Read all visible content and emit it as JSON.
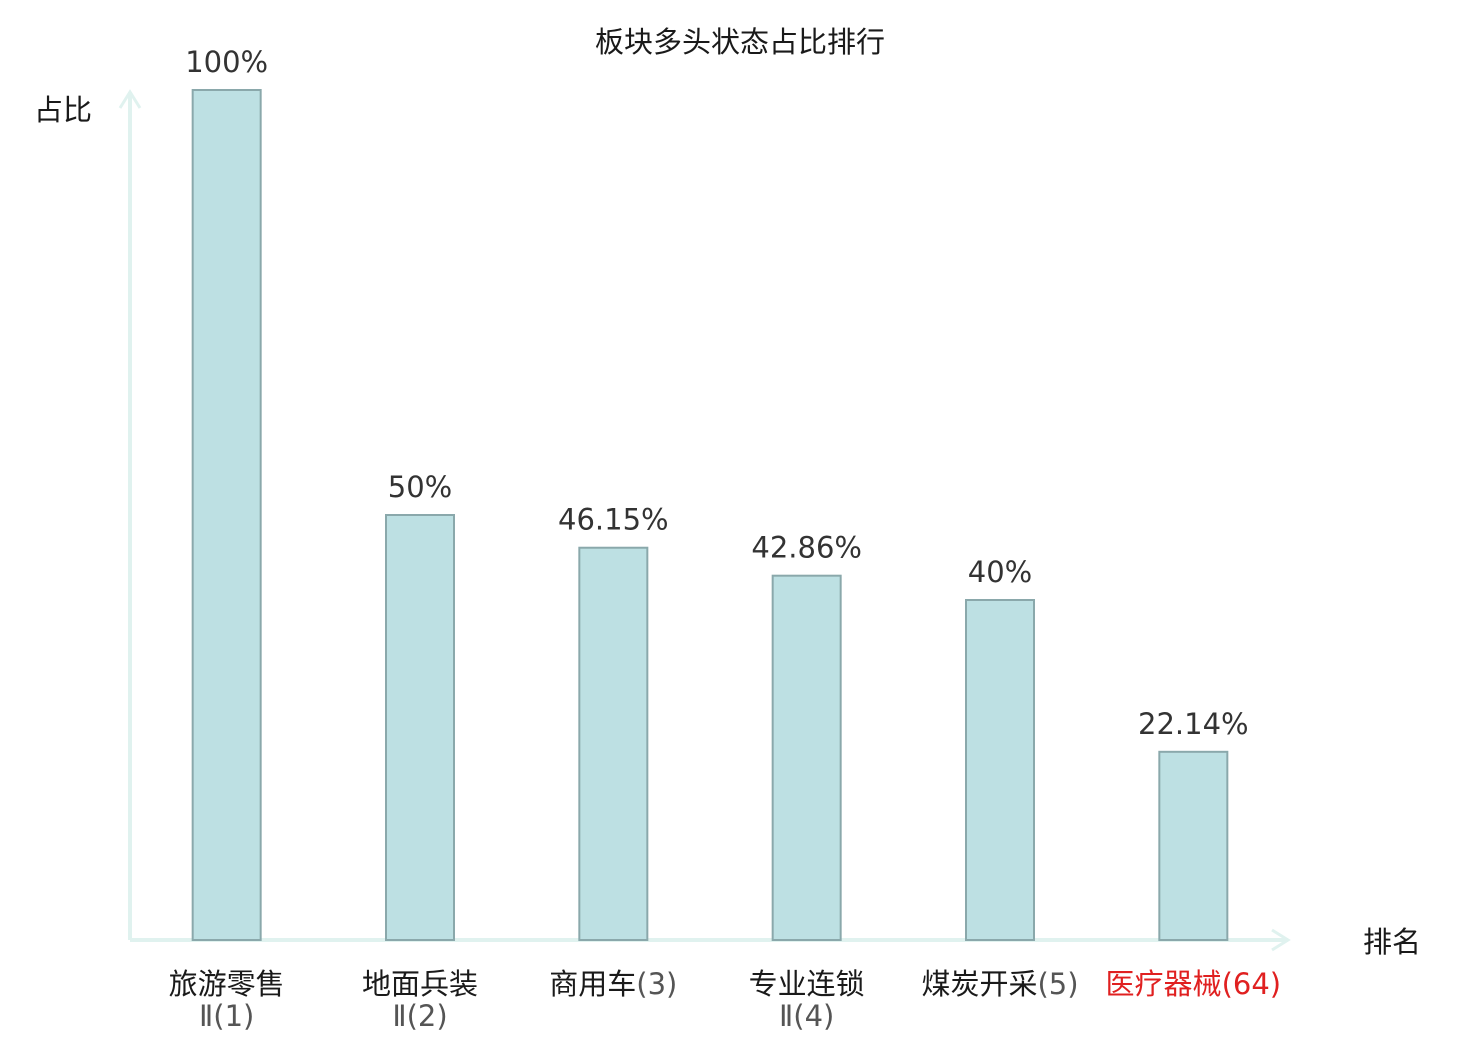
{
  "chart_data": {
    "type": "bar",
    "title": "板块多头状态占比排行",
    "xlabel": "排名",
    "ylabel": "占比",
    "ylim": [
      0,
      100
    ],
    "grid": false,
    "legend": "none",
    "colors": {
      "bar_fill": "#bde0e3",
      "bar_stroke": "#8aa8ab",
      "axis": "#e0f2ef",
      "highlight": "#e02020",
      "text": "#333333"
    },
    "categories": [
      {
        "name": "旅游零售",
        "rank": "Ⅱ(1)",
        "highlight": false
      },
      {
        "name": "地面兵装",
        "rank": "Ⅱ(2)",
        "highlight": false
      },
      {
        "name": "商用车",
        "rank": "(3)",
        "highlight": false
      },
      {
        "name": "专业连锁",
        "rank": "Ⅱ(4)",
        "highlight": false
      },
      {
        "name": "煤炭开采",
        "rank": "(5)",
        "highlight": false
      },
      {
        "name": "医疗器械",
        "rank": "(64)",
        "highlight": true
      }
    ],
    "values": [
      100,
      50,
      46.15,
      42.86,
      40,
      22.14
    ],
    "value_labels": [
      "100%",
      "50%",
      "46.15%",
      "42.86%",
      "40%",
      "22.14%"
    ]
  }
}
